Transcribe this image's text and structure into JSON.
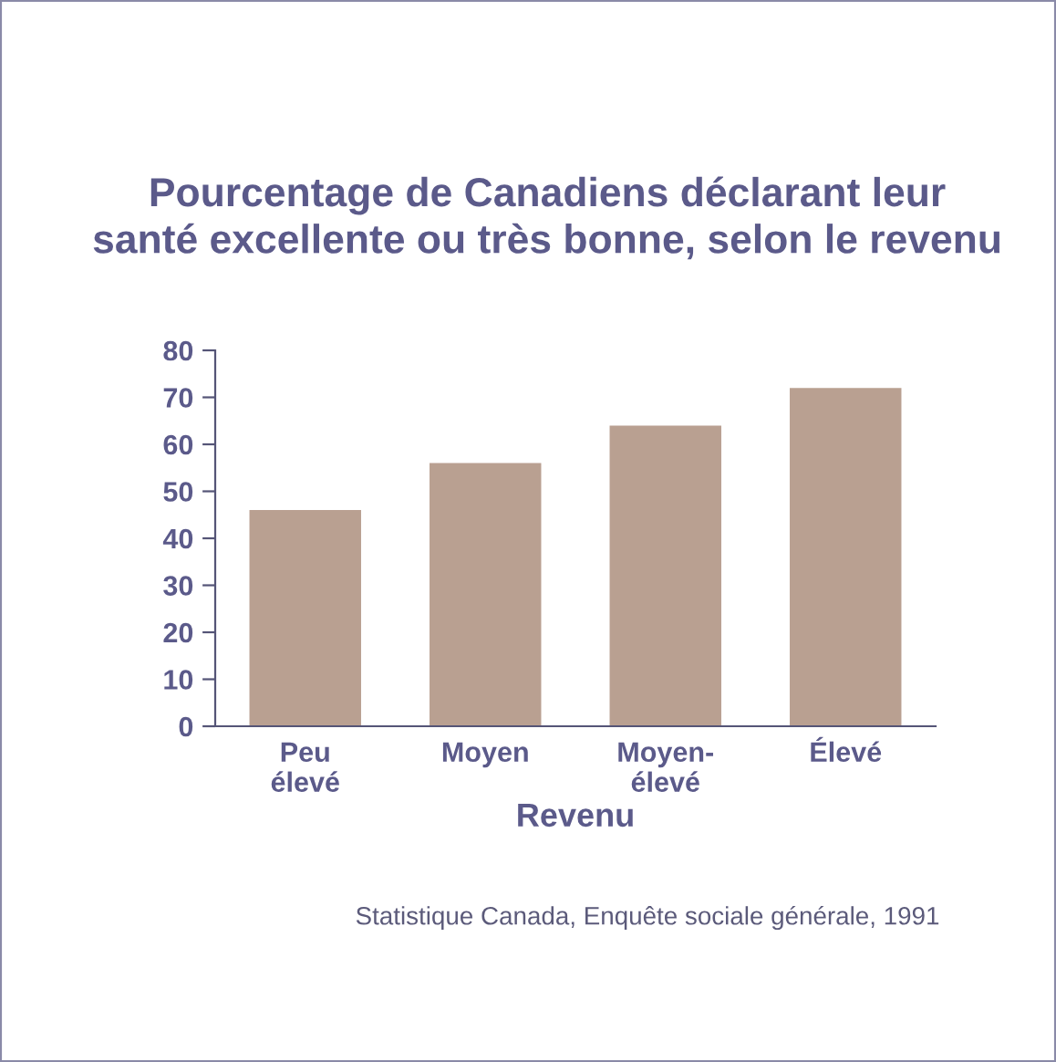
{
  "chart_data": {
    "type": "bar",
    "title": "Pourcentage de Canadiens déclarant leur\nsanté excellente ou très bonne, selon le revenu",
    "xlabel": "Revenu",
    "categories": [
      "Peu\nélevé",
      "Moyen",
      "Moyen-\nélevé",
      "Élevé"
    ],
    "values": [
      46,
      56,
      64,
      72
    ],
    "color": "#b9a091",
    "ylim": [
      0,
      80
    ],
    "yticks": [
      0,
      10,
      20,
      30,
      40,
      50,
      60,
      70,
      80
    ],
    "grid": false,
    "annotations": [
      "Statistique Canada, Enquête sociale générale, 1991"
    ]
  }
}
